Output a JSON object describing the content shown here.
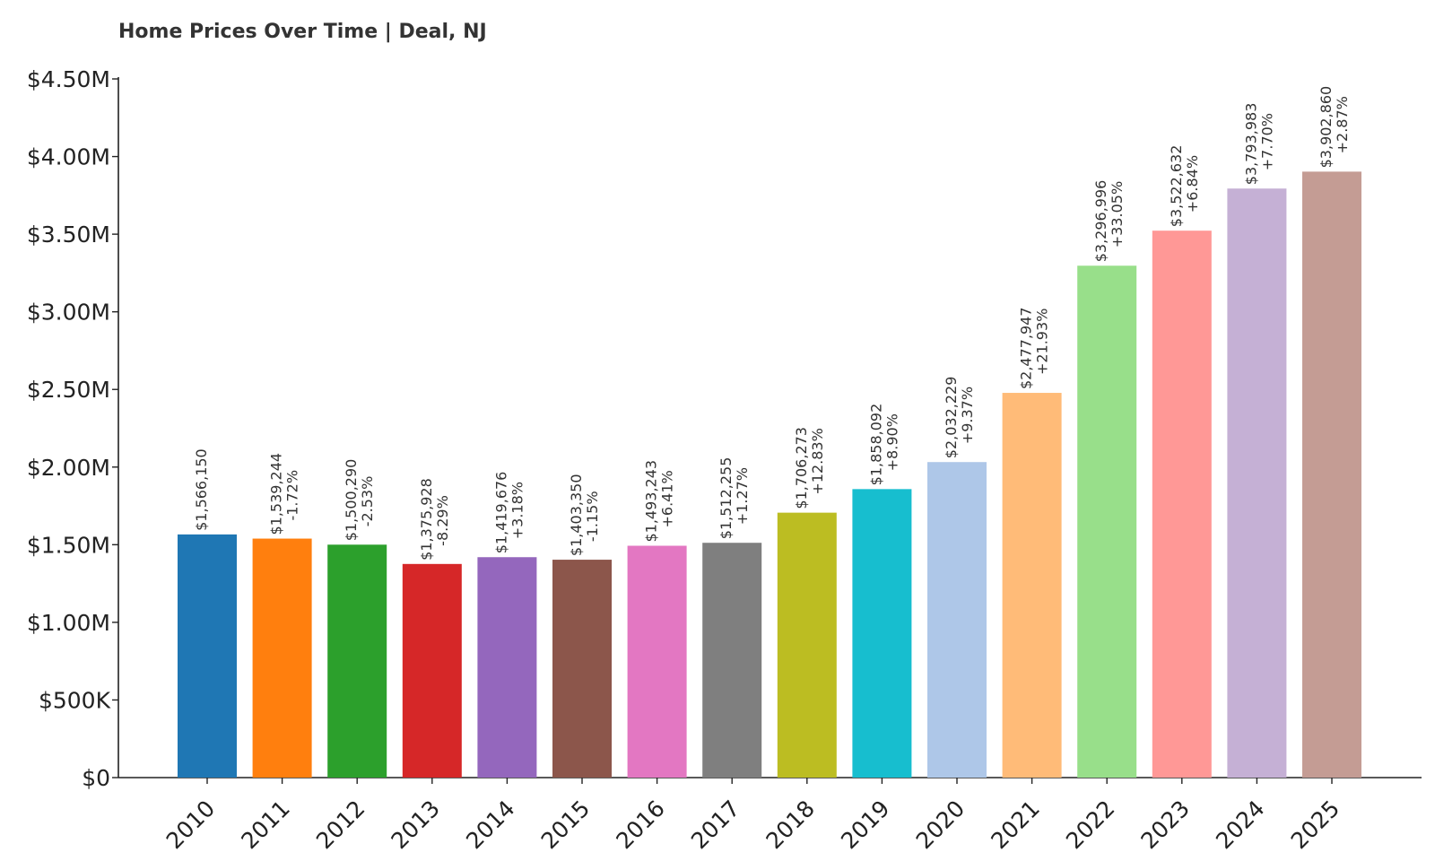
{
  "chart_data": {
    "type": "bar",
    "title": "Home Prices Over Time | Deal, NJ",
    "xlabel": "",
    "ylabel": "",
    "ylim": [
      0,
      4500000
    ],
    "yticks": [
      {
        "value": 0,
        "label": "$0"
      },
      {
        "value": 500000,
        "label": "$500K"
      },
      {
        "value": 1000000,
        "label": "$1.00M"
      },
      {
        "value": 1500000,
        "label": "$1.50M"
      },
      {
        "value": 2000000,
        "label": "$2.00M"
      },
      {
        "value": 2500000,
        "label": "$2.50M"
      },
      {
        "value": 3000000,
        "label": "$3.00M"
      },
      {
        "value": 3500000,
        "label": "$3.50M"
      },
      {
        "value": 4000000,
        "label": "$4.00M"
      },
      {
        "value": 4500000,
        "label": "$4.50M"
      }
    ],
    "categories": [
      "2010",
      "2011",
      "2012",
      "2013",
      "2014",
      "2015",
      "2016",
      "2017",
      "2018",
      "2019",
      "2020",
      "2021",
      "2022",
      "2023",
      "2024",
      "2025"
    ],
    "values": [
      1566150,
      1539244,
      1500290,
      1375928,
      1419676,
      1403350,
      1493243,
      1512255,
      1706273,
      1858092,
      2032229,
      2477947,
      3296996,
      3522632,
      3793983,
      3902860
    ],
    "value_labels": [
      "$1,566,150",
      "$1,539,244",
      "$1,500,290",
      "$1,375,928",
      "$1,419,676",
      "$1,403,350",
      "$1,493,243",
      "$1,512,255",
      "$1,706,273",
      "$1,858,092",
      "$2,032,229",
      "$2,477,947",
      "$3,296,996",
      "$3,522,632",
      "$3,793,983",
      "$3,902,860"
    ],
    "change_labels": [
      "",
      "-1.72%",
      "-2.53%",
      "-8.29%",
      "+3.18%",
      "-1.15%",
      "+6.41%",
      "+1.27%",
      "+12.83%",
      "+8.90%",
      "+9.37%",
      "+21.93%",
      "+33.05%",
      "+6.84%",
      "+7.70%",
      "+2.87%"
    ],
    "colors": [
      "#1f77b4",
      "#ff7f0e",
      "#2ca02c",
      "#d62728",
      "#9467bd",
      "#8c564b",
      "#e377c2",
      "#7f7f7f",
      "#bcbd22",
      "#17becf",
      "#aec7e8",
      "#ffbb78",
      "#98df8a",
      "#ff9896",
      "#c5b0d5",
      "#c49c94"
    ],
    "grid": false,
    "legend": "none"
  }
}
